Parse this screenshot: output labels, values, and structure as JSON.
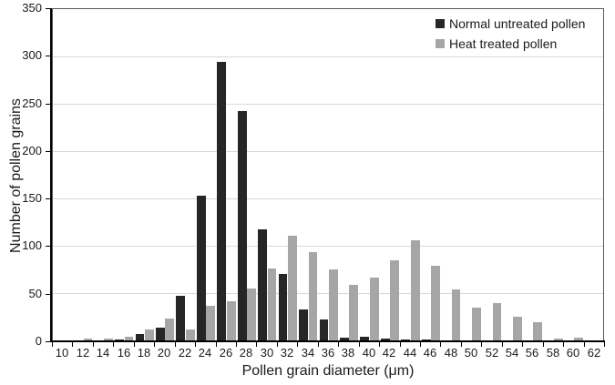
{
  "chart_data": {
    "type": "bar",
    "title": "",
    "xlabel": "Pollen grain diameter (μm)",
    "ylabel": "Number of pollen grains",
    "categories": [
      10,
      12,
      14,
      16,
      18,
      20,
      22,
      24,
      26,
      28,
      30,
      32,
      34,
      36,
      38,
      40,
      42,
      44,
      46,
      48,
      50,
      52,
      54,
      56,
      58,
      60,
      62
    ],
    "series": [
      {
        "name": "Normal untreated pollen",
        "color": "#262626",
        "values": [
          0,
          0,
          0,
          1,
          7,
          13,
          47,
          153,
          294,
          242,
          117,
          70,
          33,
          22,
          3,
          4,
          2,
          1,
          1,
          0,
          0,
          0,
          0,
          0,
          0,
          0,
          0
        ]
      },
      {
        "name": "Heat treated pollen",
        "color": "#a6a6a6",
        "values": [
          0,
          2,
          2,
          4,
          12,
          23,
          12,
          37,
          41,
          55,
          76,
          111,
          93,
          75,
          59,
          66,
          85,
          106,
          79,
          54,
          35,
          39,
          25,
          19,
          2,
          3,
          0
        ]
      }
    ],
    "ylim": [
      0,
      350
    ],
    "ytick_interval": 50,
    "grid": "horizontal",
    "gridline_color": "#d9d9d9",
    "axis_color": "#000000",
    "plot_border_color": "#595959",
    "legend_position": "top-right-inside",
    "background_color": "#ffffff"
  }
}
